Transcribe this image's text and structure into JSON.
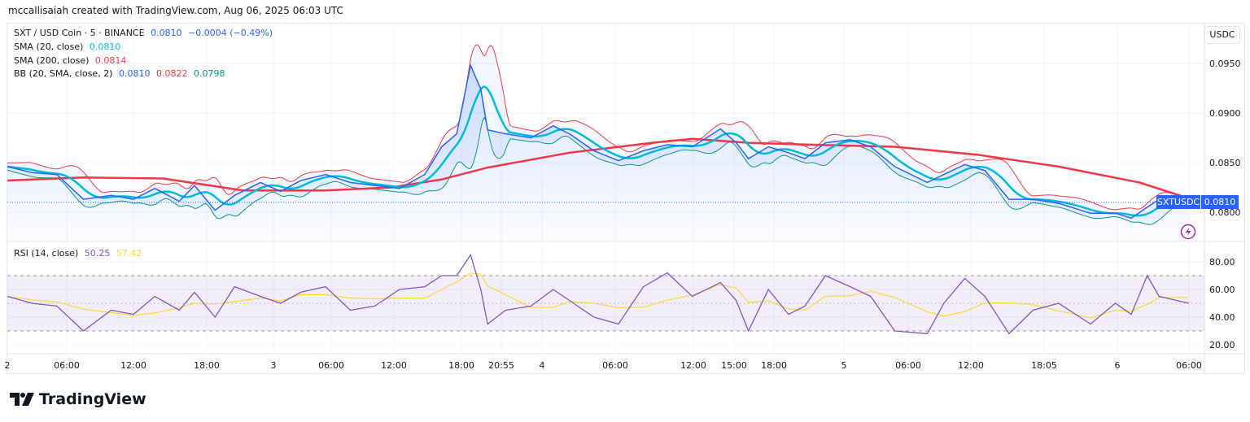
{
  "credit": "mccallisaiah created with TradingView.com, Aug 06, 2025 06:03 UTC",
  "legend": {
    "symbol": "SXT / USD Coin · 5 · BINANCE",
    "price": "0.0810",
    "change": "−0.0004 (−0.49%)",
    "sma20_label": "SMA (20, close)",
    "sma20_value": "0.0810",
    "sma200_label": "SMA (200, close)",
    "sma200_value": "0.0814",
    "bb_label": "BB (20, SMA, close, 2)",
    "bb_basis": "0.0810",
    "bb_upper": "0.0822",
    "bb_lower": "0.0798",
    "rsi_label": "RSI (14, close)",
    "rsi_value": "50.25",
    "rsi_ma_value": "57.42"
  },
  "unit_button": "USDC",
  "last_price": {
    "symbol": "SXTUSDC",
    "value": "0.0810"
  },
  "logo_text": "TradingView",
  "icons": {
    "alert": "lightning-icon",
    "logo": "tradingview-logo-icon"
  },
  "colors": {
    "price": "#2962ff",
    "sma20": "#00bcd4",
    "sma200": "#f23645",
    "bb_upper": "#f23645",
    "bb_lower": "#089981",
    "rsi": "#7e57c2",
    "rsi_ma": "#fdd835"
  },
  "chart_data": [
    {
      "type": "line",
      "pane": "price",
      "ylim": [
        0.0775,
        0.0975
      ],
      "y_ticks": [
        "0.0950",
        "0.0900",
        "0.0850",
        "0.0800"
      ],
      "x_ticks": [
        {
          "label": "2",
          "t": "08-02 00:00"
        },
        {
          "label": "06:00",
          "t": "08-02 06:00"
        },
        {
          "label": "12:00",
          "t": "08-02 12:00"
        },
        {
          "label": "18:00",
          "t": "08-02 18:00"
        },
        {
          "label": "3",
          "t": "08-03 00:00"
        },
        {
          "label": "06:00",
          "t": "08-03 06:00"
        },
        {
          "label": "12:00",
          "t": "08-03 12:00"
        },
        {
          "label": "18:00",
          "t": "08-03 18:00"
        },
        {
          "label": "20:55",
          "t": "08-03 20:55"
        },
        {
          "label": "4",
          "t": "08-04 00:00"
        },
        {
          "label": "06:00",
          "t": "08-04 06:00"
        },
        {
          "label": "12:00",
          "t": "08-04 12:00"
        },
        {
          "label": "15:00",
          "t": "08-04 15:00"
        },
        {
          "label": "18:00",
          "t": "08-04 18:00"
        },
        {
          "label": "5",
          "t": "08-05 00:00"
        },
        {
          "label": "06:00",
          "t": "08-05 06:00"
        },
        {
          "label": "12:00",
          "t": "08-05 12:00"
        },
        {
          "label": "18:05",
          "t": "08-05 18:05"
        },
        {
          "label": "6",
          "t": "08-06 00:00"
        },
        {
          "label": "06:00",
          "t": "08-06 06:00"
        }
      ],
      "close": [
        [
          "08-02 00:00",
          0.0846
        ],
        [
          "08-02 02:30",
          0.084
        ],
        [
          "08-02 05:00",
          0.0838
        ],
        [
          "08-02 07:30",
          0.0813
        ],
        [
          "08-02 10:00",
          0.0817
        ],
        [
          "08-02 12:00",
          0.0813
        ],
        [
          "08-02 13:45",
          0.0824
        ],
        [
          "08-02 15:45",
          0.0811
        ],
        [
          "08-02 17:00",
          0.0827
        ],
        [
          "08-02 18:45",
          0.0802
        ],
        [
          "08-02 20:30",
          0.0817
        ],
        [
          "08-02 22:50",
          0.083
        ],
        [
          "08-03 00:45",
          0.0821
        ],
        [
          "08-03 02:50",
          0.0832
        ],
        [
          "08-03 05:25",
          0.0838
        ],
        [
          "08-03 07:50",
          0.083
        ],
        [
          "08-03 10:10",
          0.0827
        ],
        [
          "08-03 12:30",
          0.0824
        ],
        [
          "08-03 14:45",
          0.0838
        ],
        [
          "08-03 16:15",
          0.0866
        ],
        [
          "08-03 17:35",
          0.0879
        ],
        [
          "08-03 18:40",
          0.0948
        ],
        [
          "08-03 19:25",
          0.0924
        ],
        [
          "08-03 19:55",
          0.0883
        ],
        [
          "08-03 21:15",
          0.0879
        ],
        [
          "08-03 23:10",
          0.0875
        ],
        [
          "08-04 00:55",
          0.0887
        ],
        [
          "08-04 02:15",
          0.0879
        ],
        [
          "08-04 04:15",
          0.0862
        ],
        [
          "08-04 06:15",
          0.0852
        ],
        [
          "08-04 08:10",
          0.0862
        ],
        [
          "08-04 10:00",
          0.0868
        ],
        [
          "08-04 11:55",
          0.0866
        ],
        [
          "08-04 14:00",
          0.0884
        ],
        [
          "08-04 15:10",
          0.087
        ],
        [
          "08-04 16:05",
          0.0854
        ],
        [
          "08-04 17:35",
          0.0866
        ],
        [
          "08-04 19:15",
          0.086
        ],
        [
          "08-04 20:40",
          0.0854
        ],
        [
          "08-04 22:25",
          0.087
        ],
        [
          "08-05 00:35",
          0.0873
        ],
        [
          "08-05 02:30",
          0.0866
        ],
        [
          "08-05 04:45",
          0.0846
        ],
        [
          "08-05 07:50",
          0.083
        ],
        [
          "08-05 09:25",
          0.0838
        ],
        [
          "08-05 11:25",
          0.0848
        ],
        [
          "08-05 13:10",
          0.0842
        ],
        [
          "08-05 15:10",
          0.0813
        ],
        [
          "08-05 17:10",
          0.0813
        ],
        [
          "08-05 19:15",
          0.0809
        ],
        [
          "08-05 21:50",
          0.0799
        ],
        [
          "08-05 23:50",
          0.0799
        ],
        [
          "08-06 01:10",
          0.0794
        ],
        [
          "08-06 02:30",
          0.0805
        ],
        [
          "08-06 03:30",
          0.0813
        ],
        [
          "08-06 06:00",
          0.0811
        ]
      ],
      "sma200": [
        [
          "08-02 00:00",
          0.0832
        ],
        [
          "08-02 07:30",
          0.0835
        ],
        [
          "08-02 14:25",
          0.0834
        ],
        [
          "08-02 21:15",
          0.0822
        ],
        [
          "08-03 05:25",
          0.0822
        ],
        [
          "08-03 11:45",
          0.0825
        ],
        [
          "08-03 16:15",
          0.0833
        ],
        [
          "08-03 19:55",
          0.0845
        ],
        [
          "08-04 02:15",
          0.086
        ],
        [
          "08-04 08:50",
          0.087
        ],
        [
          "08-04 11:55",
          0.0874
        ],
        [
          "08-04 16:05",
          0.087
        ],
        [
          "08-04 21:20",
          0.0868
        ],
        [
          "08-05 04:45",
          0.0866
        ],
        [
          "08-05 12:30",
          0.0858
        ],
        [
          "08-05 19:15",
          0.0846
        ],
        [
          "08-06 01:50",
          0.083
        ],
        [
          "08-06 06:00",
          0.0814
        ]
      ]
    },
    {
      "type": "line",
      "pane": "rsi",
      "ylim": [
        15,
        88
      ],
      "y_ticks": [
        "80.00",
        "60.00",
        "40.00",
        "20.00"
      ],
      "bands": [
        70,
        50,
        30
      ],
      "rsi": [
        55,
        50,
        48,
        30,
        45,
        42,
        55,
        45,
        58,
        40,
        62,
        55,
        50,
        58,
        62,
        45,
        48,
        60,
        62,
        70,
        70,
        85,
        60,
        35,
        45,
        48,
        60,
        52,
        40,
        35,
        62,
        72,
        55,
        65,
        52,
        30,
        60,
        42,
        48,
        70,
        62,
        55,
        30,
        28,
        50,
        68,
        55,
        28,
        45,
        50,
        35,
        50,
        42,
        70,
        55,
        50
      ]
    }
  ]
}
